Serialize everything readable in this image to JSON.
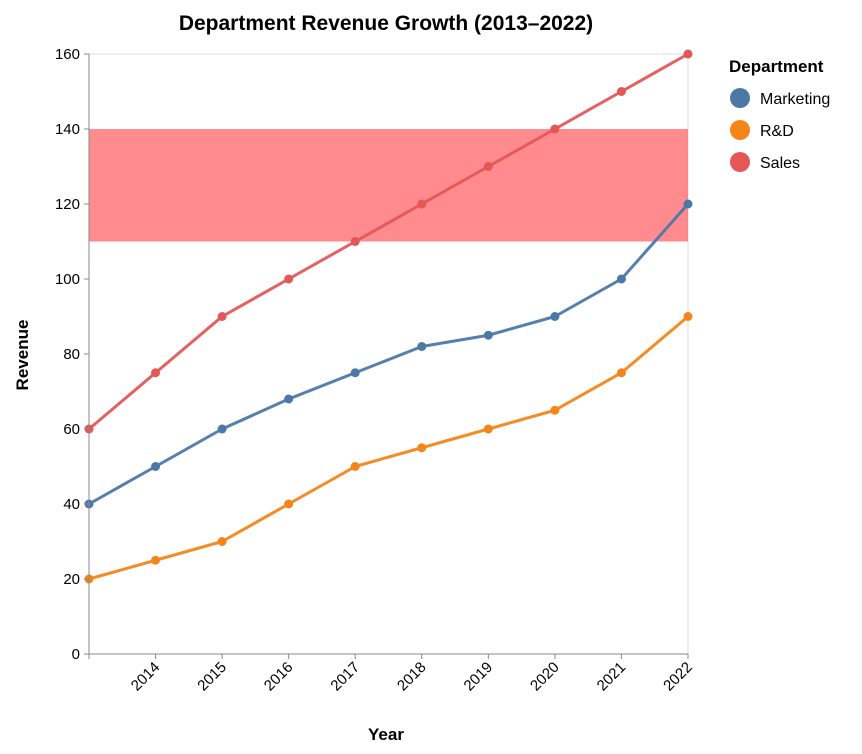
{
  "chart_data": {
    "type": "line",
    "title": "Department Revenue Growth (2013–2022)",
    "xlabel": "Year",
    "ylabel": "Revenue",
    "x": [
      2013,
      2014,
      2015,
      2016,
      2017,
      2018,
      2019,
      2020,
      2021,
      2022
    ],
    "x_tick_labels": [
      "2014",
      "2015",
      "2016",
      "2017",
      "2018",
      "2019",
      "2020",
      "2021",
      "2022"
    ],
    "ylim": [
      0,
      160
    ],
    "y_ticks": [
      0,
      20,
      40,
      60,
      80,
      100,
      120,
      140,
      160
    ],
    "grid": false,
    "highlight_band": {
      "y_from": 110,
      "y_to": 140,
      "color": "#ff5a5f"
    },
    "legend": {
      "title": "Department",
      "placement": "right"
    },
    "series": [
      {
        "name": "Marketing",
        "color": "#4c78a8",
        "values": [
          40,
          50,
          60,
          68,
          75,
          82,
          85,
          90,
          100,
          120
        ]
      },
      {
        "name": "R&D",
        "color": "#f58518",
        "values": [
          20,
          25,
          30,
          40,
          50,
          55,
          60,
          65,
          75,
          90
        ]
      },
      {
        "name": "Sales",
        "color": "#e45756",
        "values": [
          60,
          75,
          90,
          100,
          110,
          120,
          130,
          140,
          150,
          160
        ]
      }
    ]
  }
}
